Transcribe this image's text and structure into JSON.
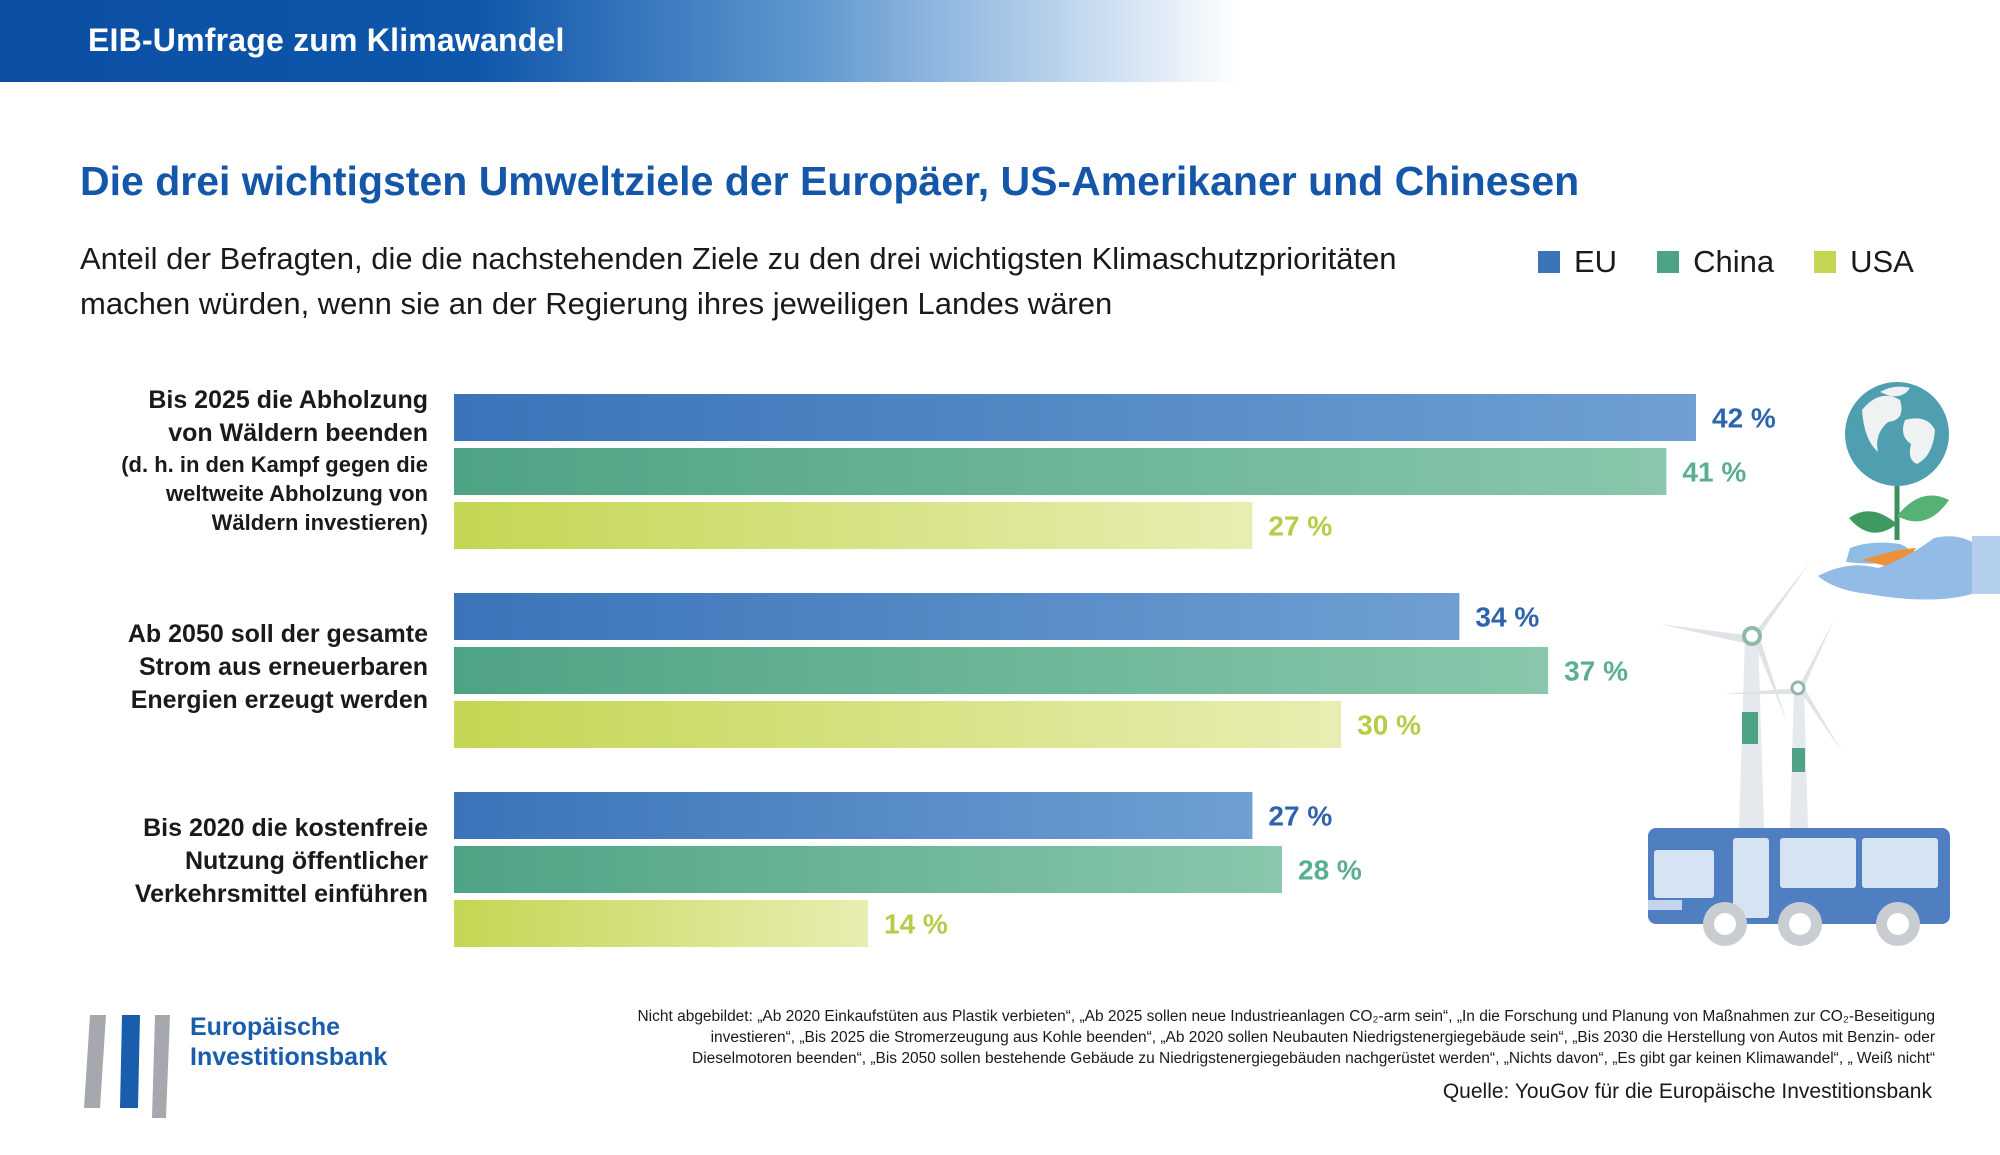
{
  "header": {
    "title": "EIB-Umfrage zum Klimawandel"
  },
  "main_title": "Die drei wichtigsten Umweltziele der Europäer, US-Amerikaner und Chinesen",
  "subtitle": {
    "line1": "Anteil der Befragten, die die nachstehenden Ziele zu den drei wichtigsten Klimaschutzprioritäten",
    "line2": "machen würden, wenn sie an der Regierung ihres jeweiligen Landes wären"
  },
  "colors": {
    "eu": "#3b74b9",
    "eu_light": "#6f9fd3",
    "china": "#4ea384",
    "china_light": "#8ac7ac",
    "usa": "#c4d653",
    "usa_light": "#e8eeb2",
    "eu_label": "#2d65ad",
    "china_label": "#5aaf8e",
    "usa_label": "#b7cb47"
  },
  "chart_data": {
    "type": "bar",
    "orientation": "horizontal",
    "title": "Die drei wichtigsten Umweltziele der Europäer, US-Amerikaner und Chinesen",
    "unit": "%",
    "xlim": [
      0,
      42
    ],
    "categories": [
      {
        "lines": [
          "Bis 2025 die Abholzung",
          "von Wäldern beenden"
        ],
        "note_lines": [
          "(d. h. in den Kampf gegen die",
          "weltweite Abholzung von",
          "Wäldern investieren)"
        ]
      },
      {
        "lines": [
          "Ab 2050 soll der gesamte",
          "Strom aus erneuerbaren",
          "Energien erzeugt werden"
        ],
        "note_lines": []
      },
      {
        "lines": [
          "Bis 2020 die kostenfreie",
          "Nutzung öffentlicher",
          "Verkehrsmittel einführen"
        ],
        "note_lines": []
      }
    ],
    "series": [
      {
        "name": "EU",
        "values": [
          42,
          34,
          27
        ],
        "labels": [
          "42 %",
          "34 %",
          "27 %"
        ]
      },
      {
        "name": "China",
        "values": [
          41,
          37,
          28
        ],
        "labels": [
          "41 %",
          "37 %",
          "28 %"
        ]
      },
      {
        "name": "USA",
        "values": [
          27,
          30,
          14
        ],
        "labels": [
          "27 %",
          "30 %",
          "14 %"
        ]
      }
    ],
    "legend_position": "top-right"
  },
  "footnote": {
    "line1": "Nicht abgebildet: „Ab 2020 Einkaufstüten aus Plastik verbieten“, „Ab 2025 sollen neue Industrieanlagen CO₂-arm sein“, „In die Forschung und Planung von Maßnahmen zur CO₂-Beseitigung",
    "line2": "investieren“, „Bis 2025 die Stromerzeugung aus Kohle beenden“, „Ab 2020 sollen Neubauten Niedrigstenergiegebäude sein“, „Bis 2030 die Herstellung von Autos mit Benzin- oder",
    "line3": "Dieselmotoren beenden“, „Bis 2050 sollen bestehende Gebäude zu Niedrigstenergiegebäuden nachgerüstet werden“, „Nichts davon“, „Es gibt gar keinen Klimawandel“, „ Weiß nicht“"
  },
  "source": "Quelle: YouGov für die Europäische Investitionsbank",
  "logo": {
    "line1": "Europäische",
    "line2": "Investitionsbank"
  },
  "icons": [
    "globe-plant-hand-icon",
    "wind-turbine-icon",
    "bus-icon",
    "eib-logo-icon"
  ]
}
